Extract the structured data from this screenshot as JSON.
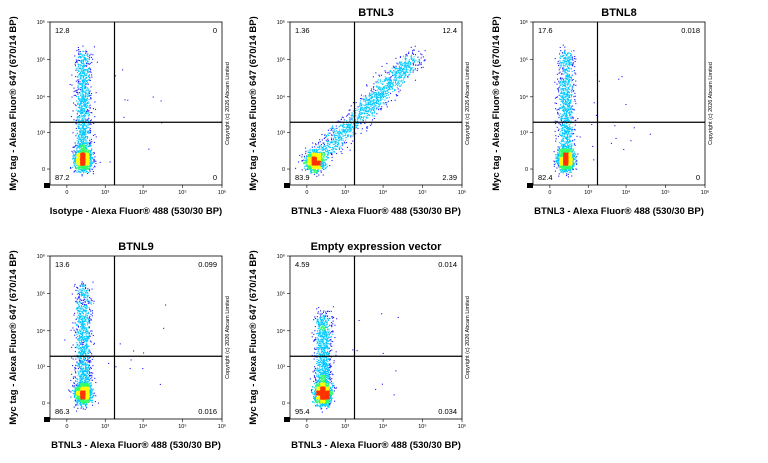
{
  "chart_data": [
    {
      "type": "scatter",
      "title": "",
      "xlabel": "Isotype - Alexa Fluor® 488 (530/30 BP)",
      "ylabel": "Myc tag - Alexa Fluor® 647 (670/14 BP)",
      "x_ticks": [
        "0",
        "10³",
        "10⁴",
        "10⁵",
        "10⁶"
      ],
      "y_ticks": [
        "0",
        "10³",
        "10⁴",
        "10⁵",
        "10⁶"
      ],
      "gate": {
        "x": 1800,
        "y": 2000
      },
      "quadrants": {
        "top_left": "12.8",
        "top_right": "0",
        "bottom_left": "87.2",
        "bottom_right": "0"
      },
      "copyright": "Copyright (c) 2026 Abcam Limited",
      "population": "vertical",
      "colormap": [
        "#1a1aff",
        "#00c8ff",
        "#33ff66",
        "#ffff00",
        "#ff3300"
      ]
    },
    {
      "type": "scatter",
      "title": "BTNL3",
      "xlabel": "BTNL3 - Alexa Fluor® 488 (530/30 BP)",
      "ylabel": "Myc tag - Alexa Fluor® 647 (670/14 BP)",
      "x_ticks": [
        "0",
        "10³",
        "10⁴",
        "10⁵",
        "10⁶"
      ],
      "y_ticks": [
        "0",
        "10³",
        "10⁴",
        "10⁵",
        "10⁶"
      ],
      "gate": {
        "x": 1800,
        "y": 2000
      },
      "quadrants": {
        "top_left": "1.36",
        "top_right": "12.4",
        "bottom_left": "83.9",
        "bottom_right": "2.39"
      },
      "copyright": "Copyright (c) 2026 Abcam Limited",
      "population": "diagonal",
      "colormap": [
        "#1a1aff",
        "#00c8ff",
        "#33ff66",
        "#ffff00",
        "#ff3300"
      ]
    },
    {
      "type": "scatter",
      "title": "BTNL8",
      "xlabel": "BTNL3 - Alexa Fluor® 488 (530/30 BP)",
      "ylabel": "Myc tag - Alexa Fluor® 647 (670/14 BP)",
      "x_ticks": [
        "0",
        "10³",
        "10⁴",
        "10⁵",
        "10⁶"
      ],
      "y_ticks": [
        "0",
        "10³",
        "10⁴",
        "10⁵",
        "10⁶"
      ],
      "gate": {
        "x": 1800,
        "y": 2000
      },
      "quadrants": {
        "top_left": "17.6",
        "top_right": "0.018",
        "bottom_left": "82.4",
        "bottom_right": "0"
      },
      "copyright": "Copyright (c) 2026 Abcam Limited",
      "population": "vertical",
      "colormap": [
        "#1a1aff",
        "#00c8ff",
        "#33ff66",
        "#ffff00",
        "#ff3300"
      ]
    },
    {
      "type": "scatter",
      "title": "BTNL9",
      "xlabel": "BTNL3 - Alexa Fluor® 488 (530/30 BP)",
      "ylabel": "Myc tag - Alexa Fluor® 647 (670/14 BP)",
      "x_ticks": [
        "0",
        "10³",
        "10⁴",
        "10⁵",
        "10⁶"
      ],
      "y_ticks": [
        "0",
        "10³",
        "10⁴",
        "10⁵",
        "10⁶"
      ],
      "gate": {
        "x": 1800,
        "y": 2000
      },
      "quadrants": {
        "top_left": "13.6",
        "top_right": "0.099",
        "bottom_left": "86.3",
        "bottom_right": "0.016"
      },
      "copyright": "Copyright (c) 2026 Abcam Limited",
      "population": "vertical",
      "colormap": [
        "#1a1aff",
        "#00c8ff",
        "#33ff66",
        "#ffff00",
        "#ff3300"
      ]
    },
    {
      "type": "scatter",
      "title": "Empty expression vector",
      "xlabel": "BTNL3 - Alexa Fluor® 488 (530/30 BP)",
      "ylabel": "Myc tag - Alexa Fluor® 647 (670/14 BP)",
      "x_ticks": [
        "0",
        "10³",
        "10⁴",
        "10⁵",
        "10⁶"
      ],
      "y_ticks": [
        "0",
        "10³",
        "10⁴",
        "10⁵",
        "10⁶"
      ],
      "gate": {
        "x": 1800,
        "y": 2000
      },
      "quadrants": {
        "top_left": "4.59",
        "top_right": "0.014",
        "bottom_left": "95.4",
        "bottom_right": "0.034"
      },
      "copyright": "Copyright (c) 2026 Abcam Limited",
      "population": "vertical_short",
      "colormap": [
        "#1a1aff",
        "#00c8ff",
        "#33ff66",
        "#ffff00",
        "#ff3300"
      ]
    }
  ]
}
